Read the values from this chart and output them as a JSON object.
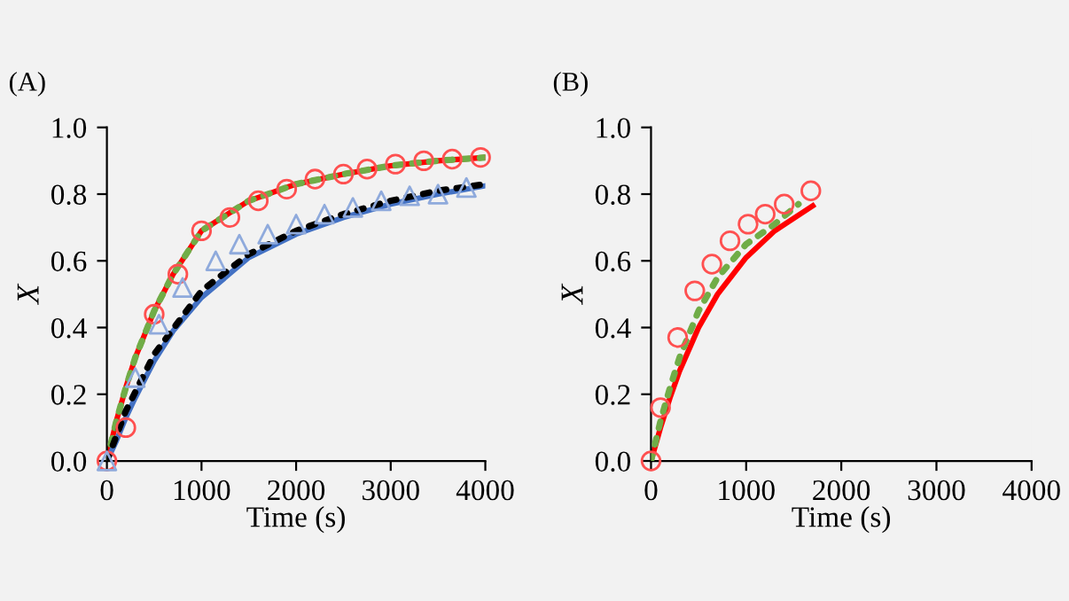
{
  "chart_data": [
    {
      "type": "line",
      "title": "(A)",
      "xlabel": "Time (s)",
      "ylabel": "X",
      "xlim": [
        0,
        4000
      ],
      "ylim": [
        0,
        1.0
      ],
      "xticks": [
        0,
        1000,
        2000,
        3000,
        4000
      ],
      "yticks": [
        {
          "value": 0,
          "label": "0.0"
        },
        {
          "value": 0.2,
          "label": "0.2"
        },
        {
          "value": 0.4,
          "label": "0.4"
        },
        {
          "value": 0.6,
          "label": "0.6"
        },
        {
          "value": 0.8,
          "label": "0.8"
        },
        {
          "value": 1.0,
          "label": "1.0"
        }
      ],
      "grid": false,
      "legend": false,
      "series": [
        {
          "type": "line",
          "color": "#ff0000",
          "line_style": "solid",
          "marker": "none",
          "x": [
            0,
            100,
            200,
            300,
            400,
            500,
            700,
            1000,
            1500,
            2000,
            2500,
            3000,
            3500,
            4000
          ],
          "values": [
            0,
            0.12,
            0.22,
            0.31,
            0.38,
            0.45,
            0.56,
            0.69,
            0.78,
            0.83,
            0.86,
            0.885,
            0.9,
            0.91
          ]
        },
        {
          "type": "line",
          "color": "#70ad47",
          "line_style": "dotted",
          "marker": "none",
          "x": [
            0,
            100,
            200,
            300,
            400,
            500,
            700,
            1000,
            1500,
            2000,
            2500,
            3000,
            3500,
            4000
          ],
          "values": [
            0,
            0.12,
            0.22,
            0.31,
            0.38,
            0.45,
            0.56,
            0.69,
            0.78,
            0.83,
            0.86,
            0.885,
            0.9,
            0.91
          ]
        },
        {
          "type": "line",
          "color": "#4472c4",
          "line_style": "solid",
          "marker": "none",
          "x": [
            0,
            100,
            200,
            300,
            500,
            700,
            1000,
            1500,
            2000,
            2500,
            3000,
            3500,
            4000
          ],
          "values": [
            0,
            0.06,
            0.13,
            0.19,
            0.3,
            0.39,
            0.49,
            0.61,
            0.68,
            0.73,
            0.77,
            0.8,
            0.825
          ]
        },
        {
          "type": "line",
          "color": "#000000",
          "line_style": "dotted",
          "marker": "none",
          "x": [
            0,
            200,
            500,
            1000,
            1500,
            2000,
            2500,
            3000,
            3500,
            4000
          ],
          "values": [
            0,
            0.15,
            0.32,
            0.51,
            0.62,
            0.69,
            0.74,
            0.78,
            0.81,
            0.83
          ]
        },
        {
          "type": "scatter",
          "color": "#ff5050",
          "marker": "circle",
          "x": [
            0,
            200,
            500,
            750,
            1000,
            1300,
            1600,
            1900,
            2200,
            2500,
            2750,
            3050,
            3350,
            3650,
            3950
          ],
          "values": [
            0,
            0.1,
            0.44,
            0.56,
            0.69,
            0.73,
            0.78,
            0.815,
            0.845,
            0.86,
            0.875,
            0.89,
            0.9,
            0.905,
            0.91
          ]
        },
        {
          "type": "scatter",
          "color": "#8faadc",
          "marker": "triangle",
          "x": [
            0,
            300,
            550,
            800,
            1150,
            1400,
            1700,
            2000,
            2300,
            2600,
            2900,
            3200,
            3500,
            3800
          ],
          "values": [
            0,
            0.25,
            0.41,
            0.52,
            0.6,
            0.65,
            0.68,
            0.71,
            0.74,
            0.76,
            0.78,
            0.795,
            0.8,
            0.82
          ]
        }
      ]
    },
    {
      "type": "line",
      "title": "(B)",
      "xlabel": "Time (s)",
      "ylabel": "X",
      "xlim": [
        0,
        4000
      ],
      "ylim": [
        0,
        1.0
      ],
      "xticks": [
        0,
        1000,
        2000,
        3000,
        4000
      ],
      "yticks": [
        {
          "value": 0,
          "label": "0.0"
        },
        {
          "value": 0.2,
          "label": "0.2"
        },
        {
          "value": 0.4,
          "label": "0.4"
        },
        {
          "value": 0.6,
          "label": "0.6"
        },
        {
          "value": 0.8,
          "label": "0.8"
        },
        {
          "value": 1.0,
          "label": "1.0"
        }
      ],
      "grid": false,
      "legend": false,
      "series": [
        {
          "type": "line",
          "color": "#ff0000",
          "line_style": "solid",
          "marker": "none",
          "x": [
            0,
            100,
            200,
            300,
            500,
            700,
            1000,
            1300,
            1700
          ],
          "values": [
            0,
            0.1,
            0.19,
            0.27,
            0.4,
            0.5,
            0.61,
            0.69,
            0.765
          ]
        },
        {
          "type": "line",
          "color": "#70ad47",
          "line_style": "dotted",
          "marker": "none",
          "x": [
            0,
            100,
            200,
            300,
            500,
            700,
            1000,
            1300,
            1550
          ],
          "values": [
            0,
            0.12,
            0.22,
            0.31,
            0.45,
            0.55,
            0.65,
            0.71,
            0.77
          ]
        },
        {
          "type": "scatter",
          "color": "#ff5050",
          "marker": "circle",
          "x": [
            0,
            100,
            280,
            460,
            640,
            830,
            1020,
            1200,
            1400,
            1680
          ],
          "values": [
            0,
            0.16,
            0.37,
            0.51,
            0.59,
            0.66,
            0.71,
            0.74,
            0.77,
            0.81
          ]
        }
      ]
    }
  ]
}
